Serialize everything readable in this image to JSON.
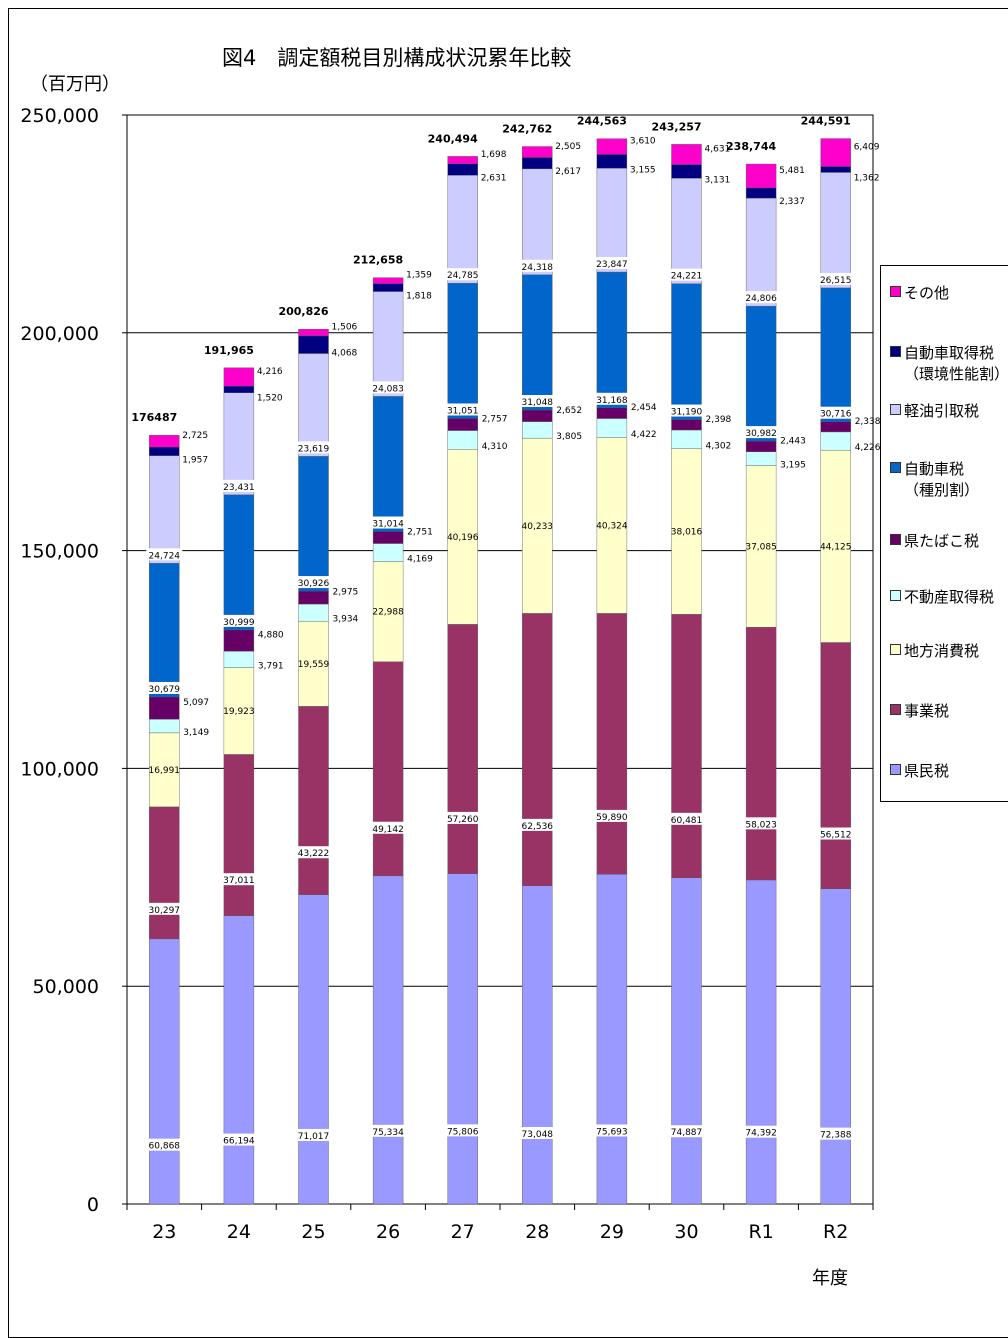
{
  "title": "図4　調定額税目別構成状況累年比較",
  "unit_label": "（百万円）",
  "x_unit_label": "年度",
  "chart_data": {
    "type": "bar",
    "stacked": true,
    "categories": [
      "23",
      "24",
      "25",
      "26",
      "27",
      "28",
      "29",
      "30",
      "R1",
      "R2"
    ],
    "totals": [
      "176487",
      "191,965",
      "200,826",
      "212,658",
      "240,494",
      "242,762",
      "244,563",
      "243,257",
      "238,744",
      "244,591"
    ],
    "ylim": [
      0,
      250000
    ],
    "yticks": [
      0,
      50000,
      100000,
      150000,
      200000,
      250000
    ],
    "ytick_labels": [
      "0",
      "50,000",
      "100,000",
      "150,000",
      "200,000",
      "250,000"
    ],
    "grid": true,
    "legend_position": "right",
    "series": [
      {
        "name": "県民税",
        "color": "#9999ff",
        "values": [
          60868,
          66194,
          71017,
          75334,
          75806,
          73048,
          75693,
          74887,
          74392,
          72388
        ],
        "labels": [
          "60,868",
          "66,194",
          "71,017",
          "75,334",
          "75,806",
          "73,048",
          "75,693",
          "74,887",
          "74,392",
          "72,388"
        ]
      },
      {
        "name": "事業税",
        "color": "#993366",
        "values": [
          30297,
          37011,
          43222,
          49142,
          57260,
          62536,
          59890,
          60481,
          58023,
          56512
        ],
        "labels": [
          "30,297",
          "37,011",
          "43,222",
          "49,142",
          "57,260",
          "62,536",
          "59,890",
          "60,481",
          "58,023",
          "56,512"
        ]
      },
      {
        "name": "地方消費税",
        "color": "#ffffcc",
        "values": [
          16991,
          19923,
          19559,
          22988,
          40196,
          40233,
          40324,
          38016,
          37085,
          44125
        ],
        "labels": [
          "16,991",
          "19,923",
          "19,559",
          "22,988",
          "40,196",
          "40,233",
          "40,324",
          "38,016",
          "37,085",
          "44,125"
        ]
      },
      {
        "name": "不動産取得税",
        "color": "#ccffff",
        "values": [
          3149,
          3791,
          3934,
          4169,
          4310,
          3805,
          4422,
          4302,
          3195,
          4226
        ],
        "labels": [
          "3,149",
          "3,791",
          "3,934",
          "4,169",
          "4,310",
          "3,805",
          "4,422",
          "4,302",
          "3,195",
          "4,226"
        ]
      },
      {
        "name": "県たばこ税",
        "color": "#660066",
        "values": [
          5097,
          4880,
          2975,
          2751,
          2757,
          2652,
          2454,
          2398,
          2443,
          2338
        ],
        "labels": [
          "5,097",
          "4,880",
          "2,975",
          "2,751",
          "2,757",
          "2,652",
          "2,454",
          "2,398",
          "2,443",
          "2,338"
        ]
      },
      {
        "name": "自動車税（種別割）",
        "name_lines": [
          "自動車税",
          "（種別割）"
        ],
        "color": "#0066cc",
        "values": [
          30679,
          30999,
          30926,
          31014,
          31051,
          31048,
          31168,
          31190,
          30982,
          30716
        ],
        "labels": [
          "30,679",
          "30,999",
          "30,926",
          "31,014",
          "31,051",
          "31,048",
          "31,168",
          "31,190",
          "30,982",
          "30,716"
        ]
      },
      {
        "name": "軽油引取税",
        "color": "#ccccff",
        "values": [
          24724,
          23431,
          23619,
          24083,
          24785,
          24318,
          23847,
          24221,
          24806,
          26515
        ],
        "labels": [
          "24,724",
          "23,431",
          "23,619",
          "24,083",
          "24,785",
          "24,318",
          "23,847",
          "24,221",
          "24,806",
          "26,515"
        ]
      },
      {
        "name": "自動車取得税（環境性能割）",
        "name_lines": [
          "自動車取得税",
          "（環境性能割）"
        ],
        "color": "#000080",
        "values": [
          1957,
          1520,
          4068,
          1818,
          2631,
          2617,
          3155,
          3131,
          2337,
          1362
        ],
        "labels": [
          "1,957",
          "1,520",
          "4,068",
          "1,818",
          "2,631",
          "2,617",
          "3,155",
          "3,131",
          "2,337",
          "1,362"
        ]
      },
      {
        "name": "その他",
        "color": "#ff00cc",
        "values": [
          2725,
          4216,
          1506,
          1359,
          1698,
          2505,
          3610,
          4631,
          5481,
          6409
        ],
        "labels": [
          "2,725",
          "4,216",
          "1,506",
          "1,359",
          "1,698",
          "2,505",
          "3,610",
          "4,631",
          "5,481",
          "6,409"
        ]
      }
    ]
  }
}
